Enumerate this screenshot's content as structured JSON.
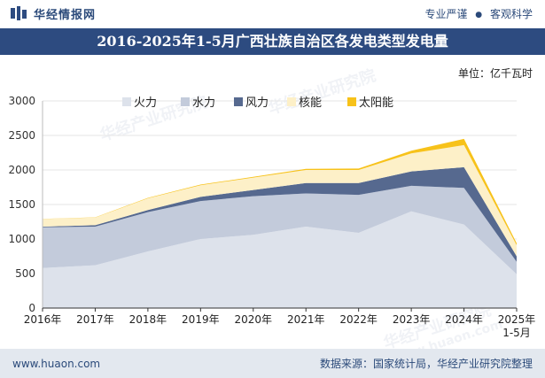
{
  "header": {
    "brand_name": "华经情报网",
    "slogan_left": "专业严谨",
    "slogan_right": "客观科学",
    "title": "2016-2025年1-5月广西壮族自治区各发电类型发电量",
    "unit": "单位：亿千瓦时"
  },
  "footer": {
    "url": "www.huaon.com",
    "source": "数据来源：国家统计局，华经产业研究院整理"
  },
  "watermark": {
    "text_cn": "华经产业研究院",
    "text_url": "www.huaon.com"
  },
  "colors": {
    "fire": "#c3cbdb",
    "hydro": "#c3cbdb",
    "wind": "#56698f",
    "nuclear": "#fdf0c8",
    "solar": "#f7c21a",
    "header": "#2d4b80"
  },
  "chart_data": {
    "type": "area",
    "stacked": true,
    "categories": [
      "2016年",
      "2017年",
      "2018年",
      "2019年",
      "2020年",
      "2021年",
      "2022年",
      "2023年",
      "2024年",
      "2025年\n1-5月"
    ],
    "ylim": [
      0,
      3000
    ],
    "yticks": [
      0,
      500,
      1000,
      1500,
      2000,
      2500,
      3000
    ],
    "legend_position": "top",
    "series": [
      {
        "name": "火力",
        "color": "#dde2eb",
        "values": [
          580,
          620,
          820,
          1000,
          1060,
          1180,
          1090,
          1400,
          1210,
          490
        ]
      },
      {
        "name": "水力",
        "color": "#c3cbdb",
        "values": [
          590,
          560,
          570,
          550,
          560,
          480,
          550,
          370,
          530,
          180
        ]
      },
      {
        "name": "风力",
        "color": "#56698f",
        "values": [
          10,
          20,
          30,
          60,
          90,
          150,
          170,
          210,
          300,
          80
        ]
      },
      {
        "name": "核能",
        "color": "#fdf0c8",
        "values": [
          110,
          110,
          170,
          170,
          180,
          190,
          190,
          260,
          320,
          160
        ]
      },
      {
        "name": "太阳能",
        "color": "#f7c21a",
        "values": [
          2,
          4,
          6,
          8,
          10,
          15,
          20,
          40,
          90,
          30
        ]
      }
    ]
  }
}
